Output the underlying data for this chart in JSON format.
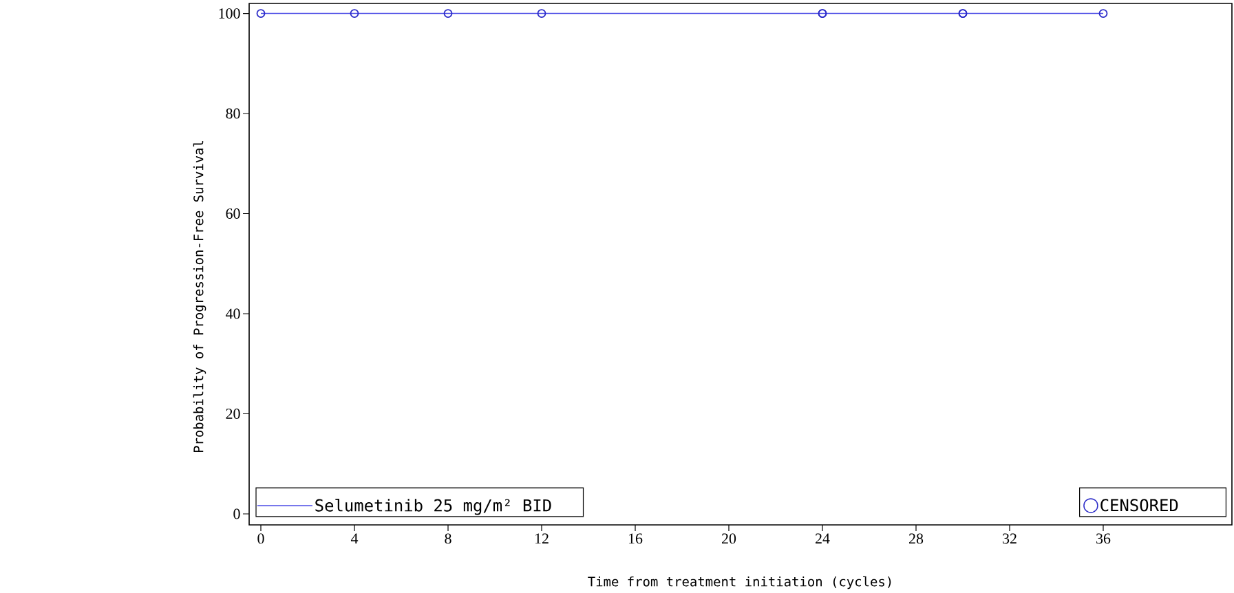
{
  "chart_data": {
    "type": "step",
    "xlabel": "Time from treatment initiation (cycles)",
    "ylabel": "Probability of Progression-Free Survival",
    "xlim": [
      -0.5,
      41.5
    ],
    "ylim": [
      -2.2,
      102
    ],
    "xticks": [
      0,
      4,
      8,
      12,
      16,
      20,
      24,
      28,
      32,
      36
    ],
    "yticks": [
      0,
      20,
      40,
      60,
      80,
      100
    ],
    "legend": "bottom",
    "grid": false,
    "series": [
      {
        "name": "Selumetinib 25 mg/m² BID",
        "color": "#4b4be6",
        "marker": "none",
        "x": [
          0,
          36
        ],
        "values": [
          100,
          100
        ]
      },
      {
        "name": "CENSORED",
        "type": "scatter",
        "color": "#2c2cc8",
        "marker": "circle",
        "x": [
          0,
          4,
          8,
          12,
          24,
          24,
          30,
          30,
          36
        ],
        "values": [
          100,
          100,
          100,
          100,
          100,
          100,
          100,
          100,
          100
        ]
      }
    ]
  }
}
